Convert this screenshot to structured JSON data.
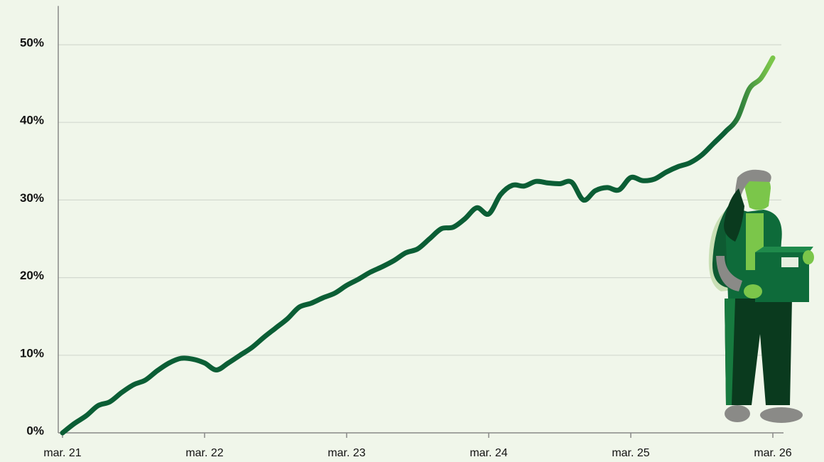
{
  "chart_data": {
    "type": "line",
    "x": [
      "2021-03",
      "2021-04",
      "2021-05",
      "2021-06",
      "2021-07",
      "2021-08",
      "2021-09",
      "2021-10",
      "2021-11",
      "2021-12",
      "2022-01",
      "2022-02",
      "2022-03",
      "2022-04",
      "2022-05",
      "2022-06",
      "2022-07",
      "2022-08",
      "2022-09",
      "2022-10",
      "2022-11",
      "2022-12",
      "2023-01",
      "2023-02",
      "2023-03",
      "2023-04",
      "2023-05",
      "2023-06",
      "2023-07",
      "2023-08",
      "2023-09",
      "2023-10",
      "2023-11",
      "2023-12",
      "2024-01",
      "2024-02",
      "2024-03",
      "2024-04",
      "2024-05",
      "2024-06",
      "2024-07",
      "2024-08",
      "2024-09",
      "2024-10",
      "2024-11",
      "2024-12",
      "2025-01",
      "2025-02",
      "2025-03",
      "2025-04",
      "2025-05",
      "2025-06",
      "2025-07",
      "2025-08",
      "2025-09",
      "2025-10",
      "2025-11",
      "2025-12",
      "2026-01",
      "2026-02",
      "2026-03"
    ],
    "series": [
      {
        "color": "#0b5e35",
        "highlight_color": "#7bc64a",
        "values": [
          0,
          1.2,
          2.2,
          3.5,
          4.0,
          5.2,
          6.2,
          6.8,
          8.0,
          9.0,
          9.6,
          9.5,
          9.0,
          8.1,
          9.0,
          10.0,
          11.0,
          12.3,
          13.5,
          14.7,
          16.2,
          16.7,
          17.4,
          18.0,
          19.0,
          19.8,
          20.7,
          21.4,
          22.2,
          23.2,
          23.7,
          25.0,
          26.3,
          26.5,
          27.6,
          29.0,
          28.2,
          30.7,
          31.9,
          31.8,
          32.4,
          32.2,
          32.1,
          32.3,
          30.0,
          31.2,
          31.6,
          31.3,
          32.9,
          32.5,
          32.7,
          33.6,
          34.3,
          34.8,
          35.8,
          37.3,
          38.8,
          40.5,
          44.3,
          45.7,
          48.3
        ]
      }
    ],
    "xlim": [
      "2021-03",
      "2026-03"
    ],
    "xticks": [
      {
        "value": "2021-03",
        "label": "mar. 21"
      },
      {
        "value": "2022-03",
        "label": "mar. 22"
      },
      {
        "value": "2023-03",
        "label": "mar. 23"
      },
      {
        "value": "2024-03",
        "label": "mar. 24"
      },
      {
        "value": "2025-03",
        "label": "mar. 25"
      },
      {
        "value": "2026-03",
        "label": "mar. 26"
      }
    ],
    "ylim": [
      0,
      55
    ],
    "yticks": [
      {
        "value": 0,
        "label": "0%"
      },
      {
        "value": 10,
        "label": "10%"
      },
      {
        "value": 20,
        "label": "20%"
      },
      {
        "value": 30,
        "label": "30%"
      },
      {
        "value": 40,
        "label": "40%"
      },
      {
        "value": 50,
        "label": "50%"
      }
    ],
    "grid": true
  }
}
